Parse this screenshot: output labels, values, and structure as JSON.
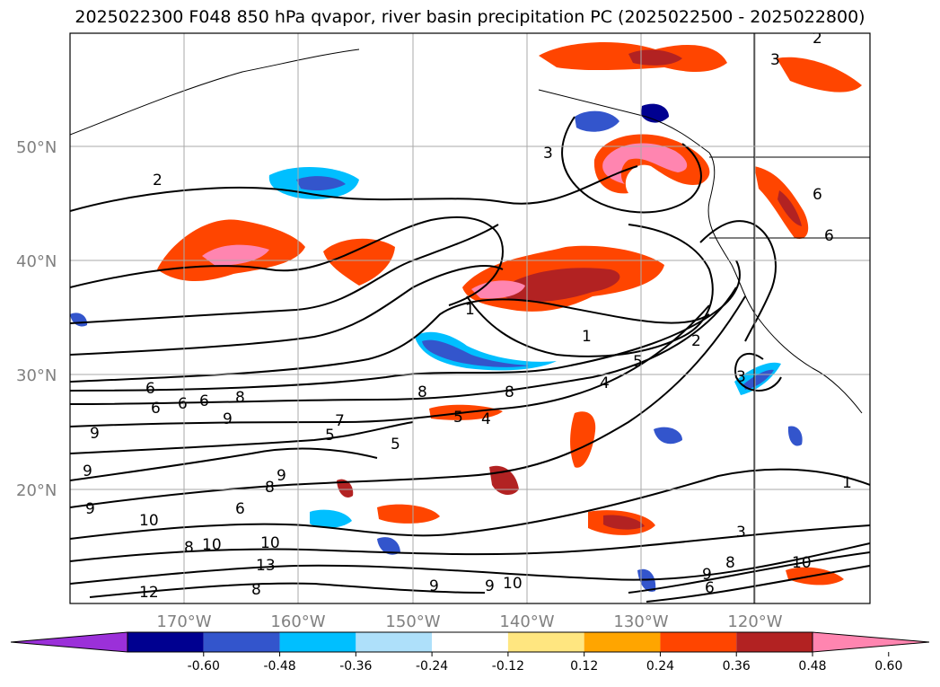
{
  "title": "2025022300 F048 850 hPa qvapor, river basin precipitation PC (2025022500 - 2025022800)",
  "map": {
    "lon_range": [
      -180,
      -110
    ],
    "lat_range": [
      10,
      60
    ],
    "lat_ticks": [
      {
        "value": 50,
        "label": "50°N"
      },
      {
        "value": 40,
        "label": "40°N"
      },
      {
        "value": 30,
        "label": "30°N"
      },
      {
        "value": 20,
        "label": "20°N"
      }
    ],
    "lon_ticks": [
      {
        "value": -170,
        "label": "170°W"
      },
      {
        "value": -160,
        "label": "160°W"
      },
      {
        "value": -150,
        "label": "150°W"
      },
      {
        "value": -140,
        "label": "140°W"
      },
      {
        "value": -130,
        "label": "130°W"
      },
      {
        "value": -120,
        "label": "120°W"
      }
    ],
    "gridlines": true,
    "contour_labels": [
      "1",
      "2",
      "3",
      "4",
      "5",
      "6",
      "7",
      "8",
      "9",
      "10",
      "12",
      "13"
    ]
  },
  "colorbar": {
    "orientation": "horizontal",
    "extend": "both",
    "colors": [
      "#9b30d9",
      "#000090",
      "#3355cc",
      "#00bfff",
      "#aee0fa",
      "#ffffff",
      "#ffe680",
      "#ffa500",
      "#ff4500",
      "#b22222",
      "#ff85b0"
    ],
    "ticks": [
      "-0.60",
      "-0.48",
      "-0.36",
      "-0.24",
      "-0.12",
      "0.12",
      "0.24",
      "0.36",
      "0.48",
      "0.60"
    ]
  },
  "colors": {
    "positive_high": "#ff85b0",
    "positive_mid": "#b22222",
    "positive_low": "#ff4500",
    "negative_low": "#00bfff",
    "negative_mid": "#3355cc",
    "negative_high": "#000090",
    "gridline": "#aaaaaa",
    "coastline": "#000000"
  }
}
